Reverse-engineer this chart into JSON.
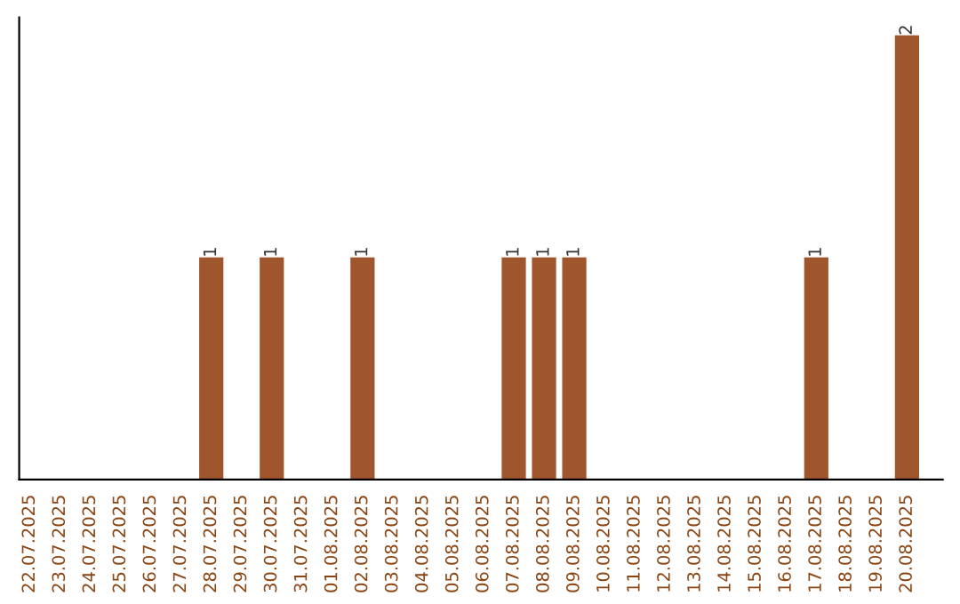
{
  "chart_data": {
    "type": "bar",
    "categories": [
      "22.07.2025",
      "23.07.2025",
      "24.07.2025",
      "25.07.2025",
      "26.07.2025",
      "27.07.2025",
      "28.07.2025",
      "29.07.2025",
      "30.07.2025",
      "31.07.2025",
      "01.08.2025",
      "02.08.2025",
      "03.08.2025",
      "04.08.2025",
      "05.08.2025",
      "06.08.2025",
      "07.08.2025",
      "08.08.2025",
      "09.08.2025",
      "10.08.2025",
      "11.08.2025",
      "12.08.2025",
      "13.08.2025",
      "14.08.2025",
      "15.08.2025",
      "16.08.2025",
      "17.08.2025",
      "18.08.2025",
      "19.08.2025",
      "20.08.2025"
    ],
    "values": [
      0,
      0,
      0,
      0,
      0,
      0,
      1,
      0,
      1,
      0,
      0,
      1,
      0,
      0,
      0,
      0,
      1,
      1,
      1,
      0,
      0,
      0,
      0,
      0,
      0,
      0,
      1,
      0,
      0,
      2
    ],
    "value_labels": [
      null,
      null,
      null,
      null,
      null,
      null,
      "1",
      null,
      "1",
      null,
      null,
      "1",
      null,
      null,
      null,
      null,
      "1",
      "1",
      "1",
      null,
      null,
      null,
      null,
      null,
      null,
      null,
      "1",
      null,
      null,
      "2"
    ],
    "color": "#a0562c",
    "ylim": [
      0,
      2.08
    ],
    "tick_labels": "x",
    "grid": false,
    "legend": false
  }
}
